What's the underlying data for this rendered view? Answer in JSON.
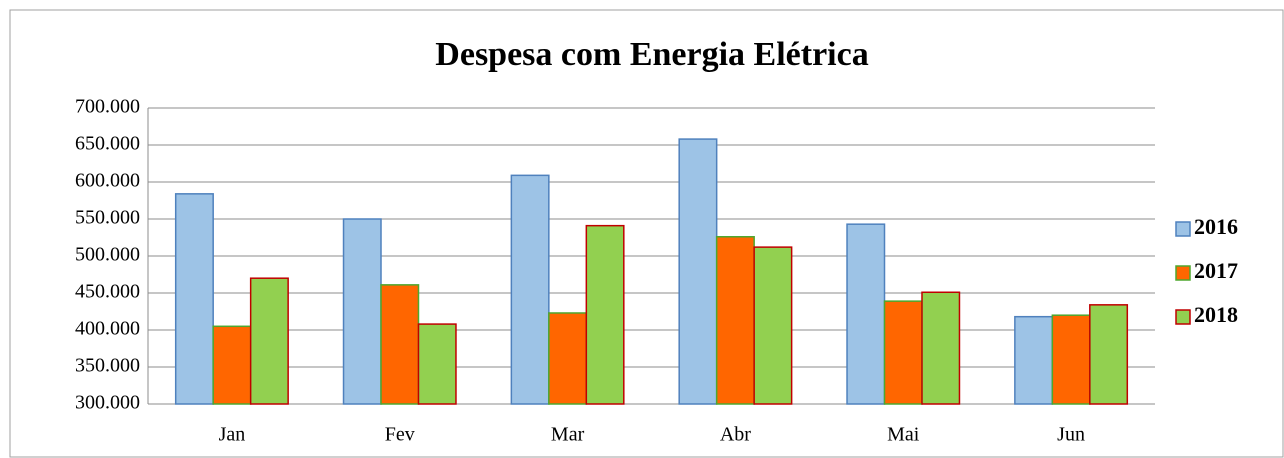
{
  "chart_data": {
    "type": "bar",
    "title": "Despesa com Energia Elétrica",
    "categories": [
      "Jan",
      "Fev",
      "Mar",
      "Abr",
      "Mai",
      "Jun"
    ],
    "series": [
      {
        "name": "2016",
        "color": "#9dc3e6",
        "edgecolor": "#4f81bd",
        "values": [
          584000,
          550000,
          609000,
          658000,
          543000,
          418000
        ]
      },
      {
        "name": "2017",
        "color": "#ff6600",
        "edgecolor": "#4ea72e",
        "values": [
          405000,
          461000,
          423000,
          526000,
          439000,
          420000
        ]
      },
      {
        "name": "2018",
        "color": "#92d050",
        "edgecolor": "#c00000",
        "values": [
          470000,
          408000,
          541000,
          512000,
          451000,
          434000
        ]
      }
    ],
    "ylim": [
      300000,
      700000
    ],
    "yticks": [
      {
        "value": 300000,
        "label": "300.000"
      },
      {
        "value": 350000,
        "label": "350.000"
      },
      {
        "value": 400000,
        "label": "400.000"
      },
      {
        "value": 450000,
        "label": "450.000"
      },
      {
        "value": 500000,
        "label": "500.000"
      },
      {
        "value": 550000,
        "label": "550.000"
      },
      {
        "value": 600000,
        "label": "600.000"
      },
      {
        "value": 650000,
        "label": "650.000"
      },
      {
        "value": 700000,
        "label": "700.000"
      }
    ],
    "grid": true,
    "legend": "right"
  }
}
